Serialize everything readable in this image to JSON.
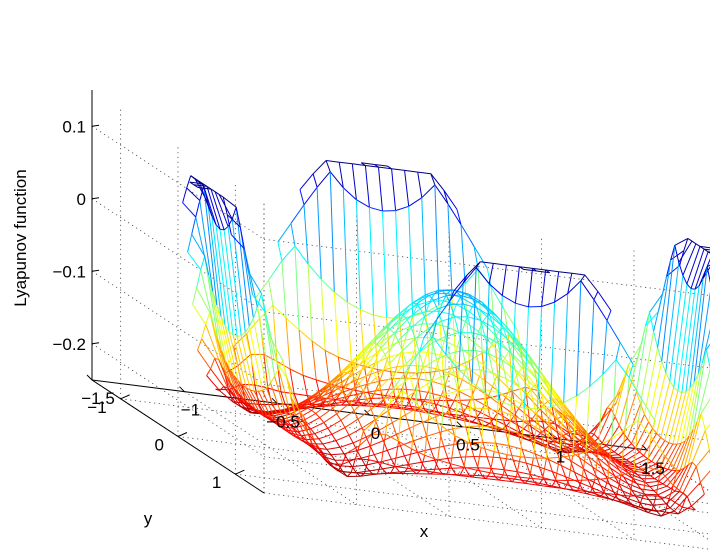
{
  "chart_data": {
    "type": "surface",
    "title": "",
    "xlabel": "x",
    "ylabel": "y",
    "zlabel": "Lyapunov function",
    "x_range": [
      -1.5,
      1.5
    ],
    "y_range": [
      -1.5,
      1.5
    ],
    "z_range": [
      -0.25,
      0.15
    ],
    "x_ticks": [
      -1.5,
      -1,
      -0.5,
      0,
      0.5,
      1,
      1.5
    ],
    "y_ticks": [
      -1,
      0,
      1
    ],
    "z_ticks": [
      -0.2,
      -0.1,
      0,
      0.1
    ],
    "x_tick_labels": [
      "−1.5",
      "−1",
      "−0.5",
      "0",
      "0.5",
      "1",
      "1.5"
    ],
    "y_tick_labels": [
      "−1",
      "0",
      "1"
    ],
    "z_tick_labels": [
      "−0.2",
      "−0.1",
      "0",
      "0.1"
    ],
    "grid": true,
    "colormap": "jet",
    "mesh_style": "wireframe",
    "surface_features": {
      "center_peak": {
        "x": 0,
        "y": 0,
        "z": 0.0
      },
      "corner_peaks_z": 0.1,
      "basin_min_z": -0.25
    }
  }
}
